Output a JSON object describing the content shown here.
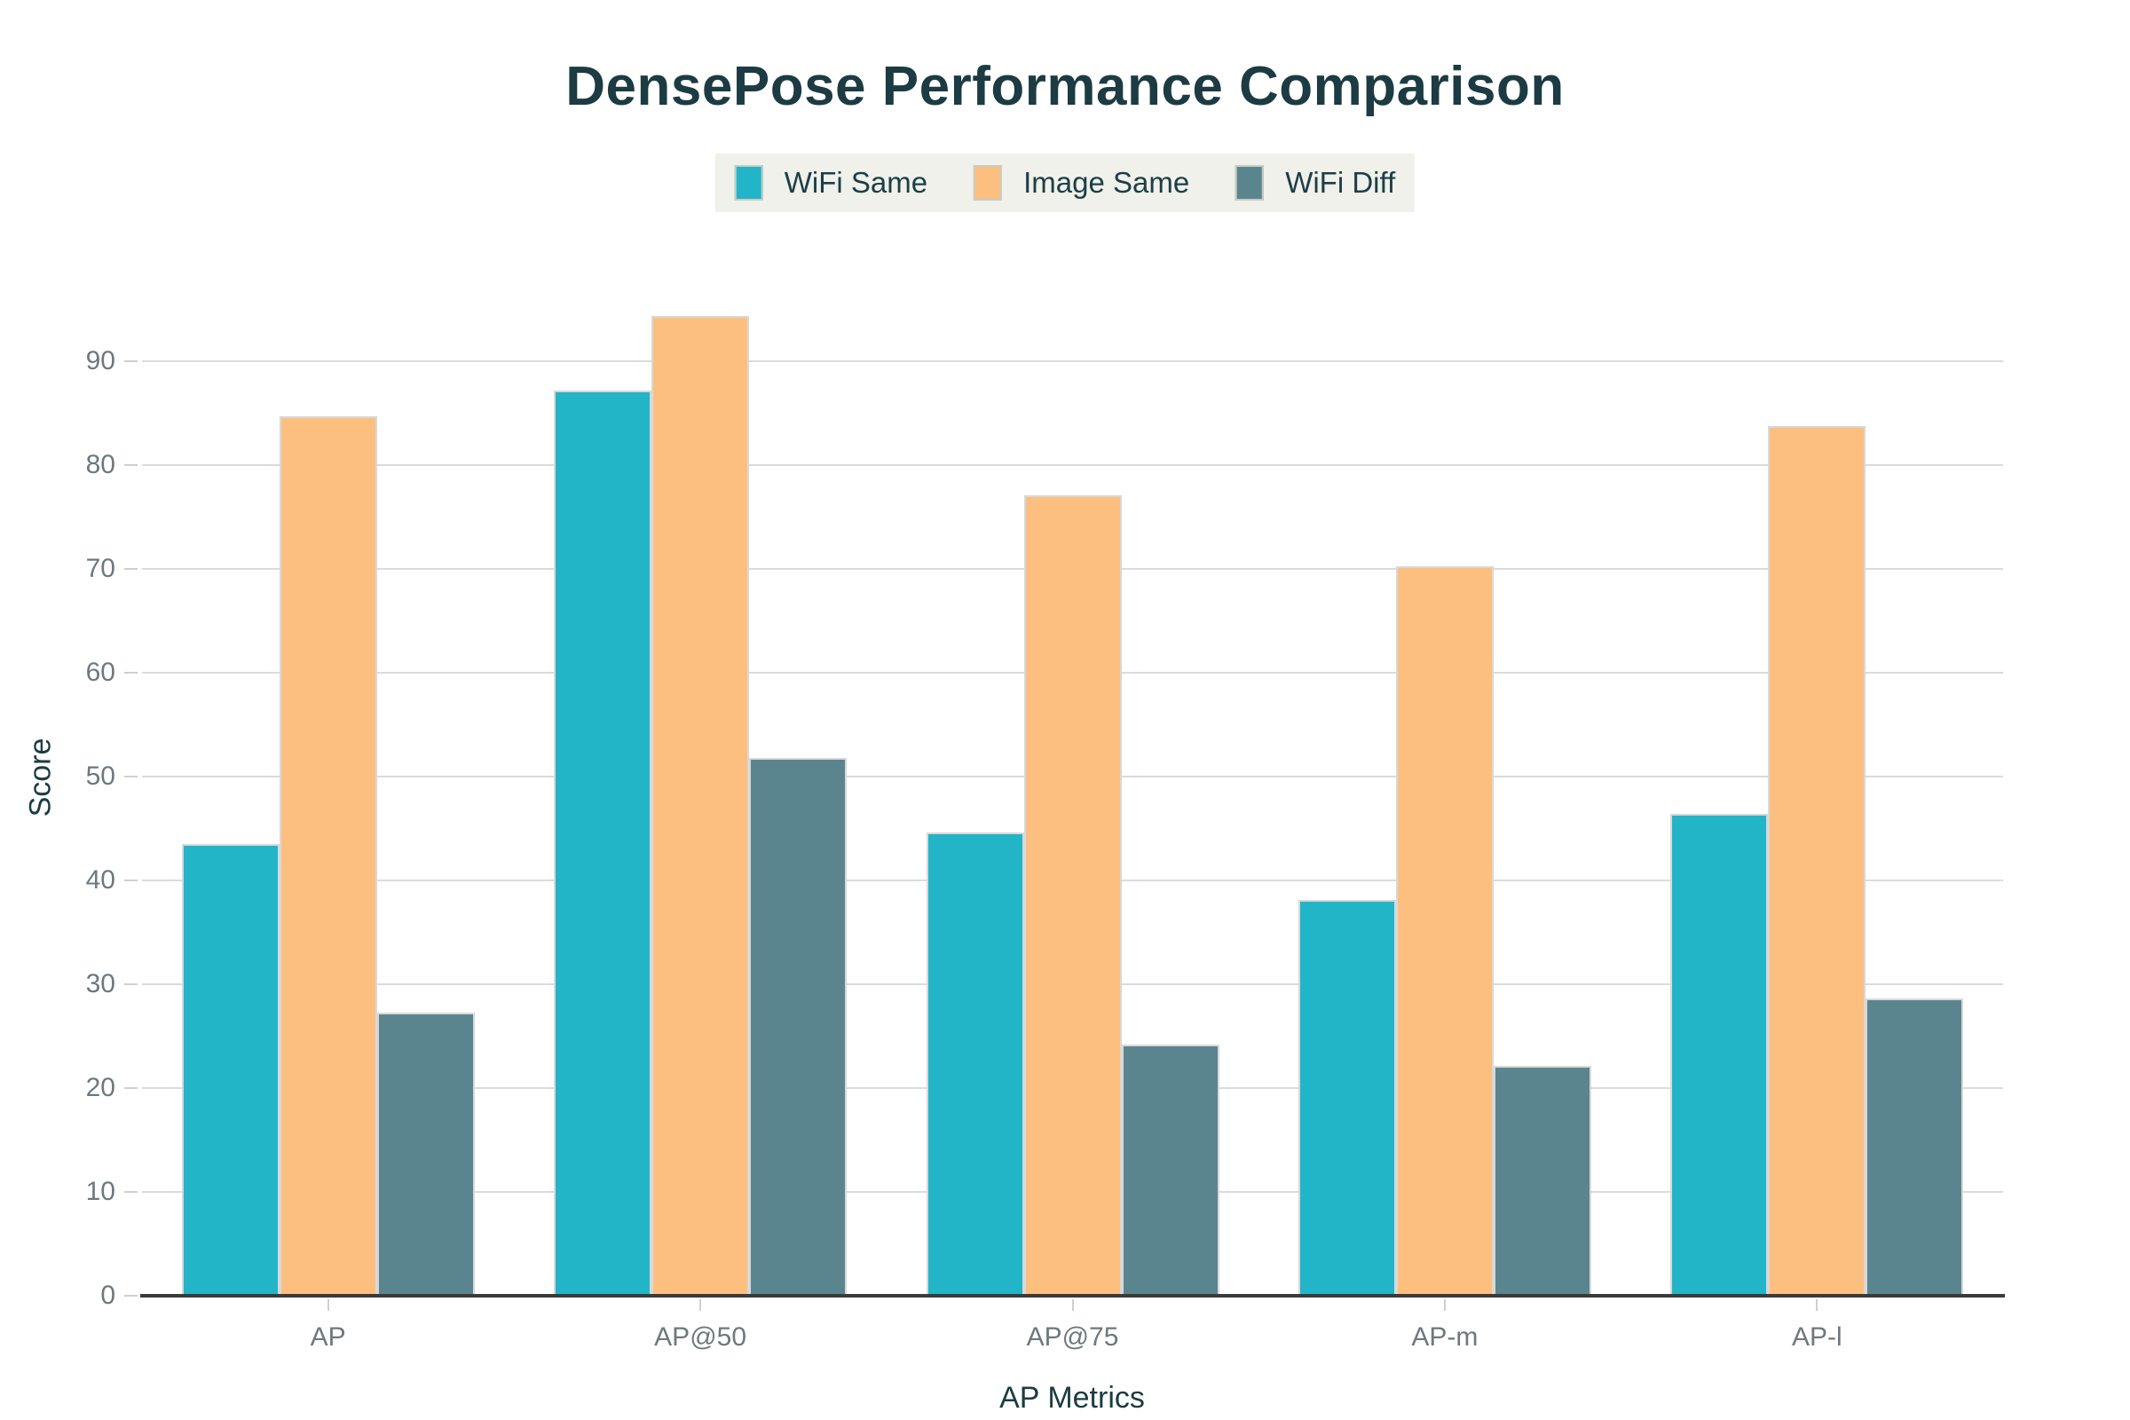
{
  "page": {
    "background": "#FFFFFF"
  },
  "chart_data": {
    "type": "bar",
    "title": "DensePose Performance Comparison",
    "xlabel": "AP Metrics",
    "ylabel": "Score",
    "categories": [
      "AP",
      "AP@50",
      "AP@75",
      "AP-m",
      "AP-l"
    ],
    "series": [
      {
        "name": "WiFi Same",
        "color": "#22B5C8",
        "values": [
          43.5,
          87.2,
          44.6,
          38.1,
          46.4
        ]
      },
      {
        "name": "Image Same",
        "color": "#FDBF7F",
        "values": [
          84.7,
          94.4,
          77.1,
          70.3,
          83.8
        ]
      },
      {
        "name": "WiFi Diff",
        "color": "#5B858E",
        "values": [
          27.3,
          51.8,
          24.2,
          22.1,
          28.6
        ]
      }
    ],
    "ylim": [
      0,
      100
    ],
    "yticks": [
      0,
      10,
      20,
      30,
      40,
      50,
      60,
      70,
      80,
      90
    ],
    "grid": true,
    "legend_position": "top",
    "styles": {
      "title_color": "#1C3B43",
      "axis_label_color": "#1C3B43",
      "tick_label_color": "#6E787D",
      "gridline_color": "#DBDBDB",
      "axis_line_color": "#3A3A3A",
      "tick_mark_color": "#CFCFCF",
      "bar_edge_color": "#D8D8D8",
      "legend_bg": "#EFF1EA",
      "legend_text_color": "#1D3E46",
      "legend_swatch_border": "#C8CCC4"
    }
  }
}
